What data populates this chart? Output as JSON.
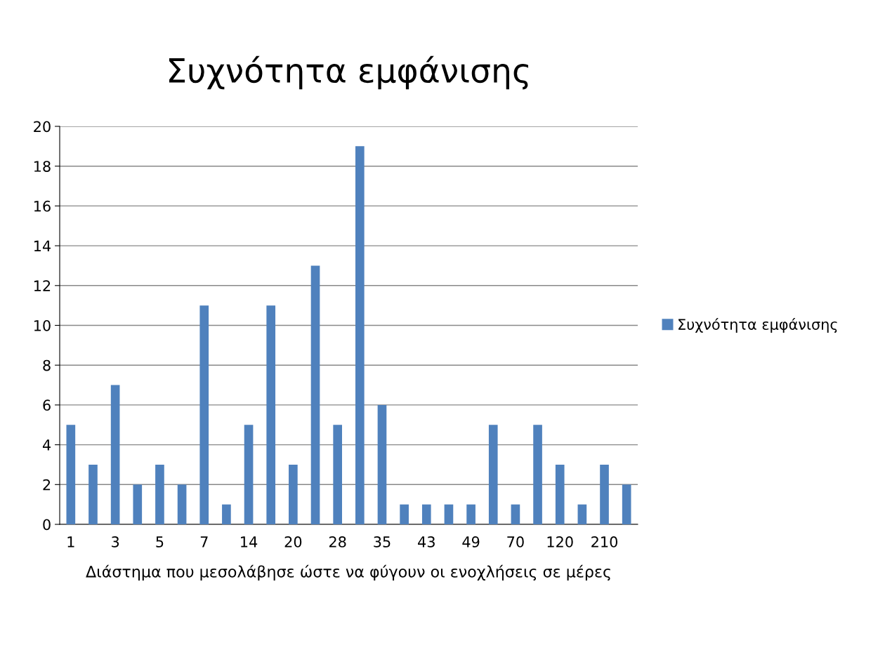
{
  "chart_data": {
    "type": "bar",
    "title": "Συχνότητα εμφάνισης",
    "xlabel": "Διάστημα που μεσολάβησε ώστε να φύγουν οι ενοχλήσεις σε μέρες",
    "categories": [
      "1",
      null,
      "3",
      null,
      "5",
      null,
      "7",
      null,
      "14",
      null,
      "20",
      null,
      "28",
      null,
      "35",
      null,
      "43",
      null,
      "49",
      null,
      "70",
      null,
      "120",
      null,
      "210",
      null
    ],
    "series": [
      {
        "name": "Συχνότητα εμφάνισης",
        "color": "#4f81bd",
        "values": [
          5,
          3,
          7,
          2,
          3,
          2,
          11,
          1,
          5,
          11,
          3,
          13,
          5,
          19,
          6,
          1,
          1,
          1,
          1,
          5,
          1,
          5,
          3,
          1,
          3,
          2
        ]
      }
    ],
    "ylim": [
      0,
      20
    ],
    "yticks": [
      0,
      2,
      4,
      6,
      8,
      10,
      12,
      14,
      16,
      18,
      20
    ],
    "grid": "y",
    "legend": "right"
  }
}
